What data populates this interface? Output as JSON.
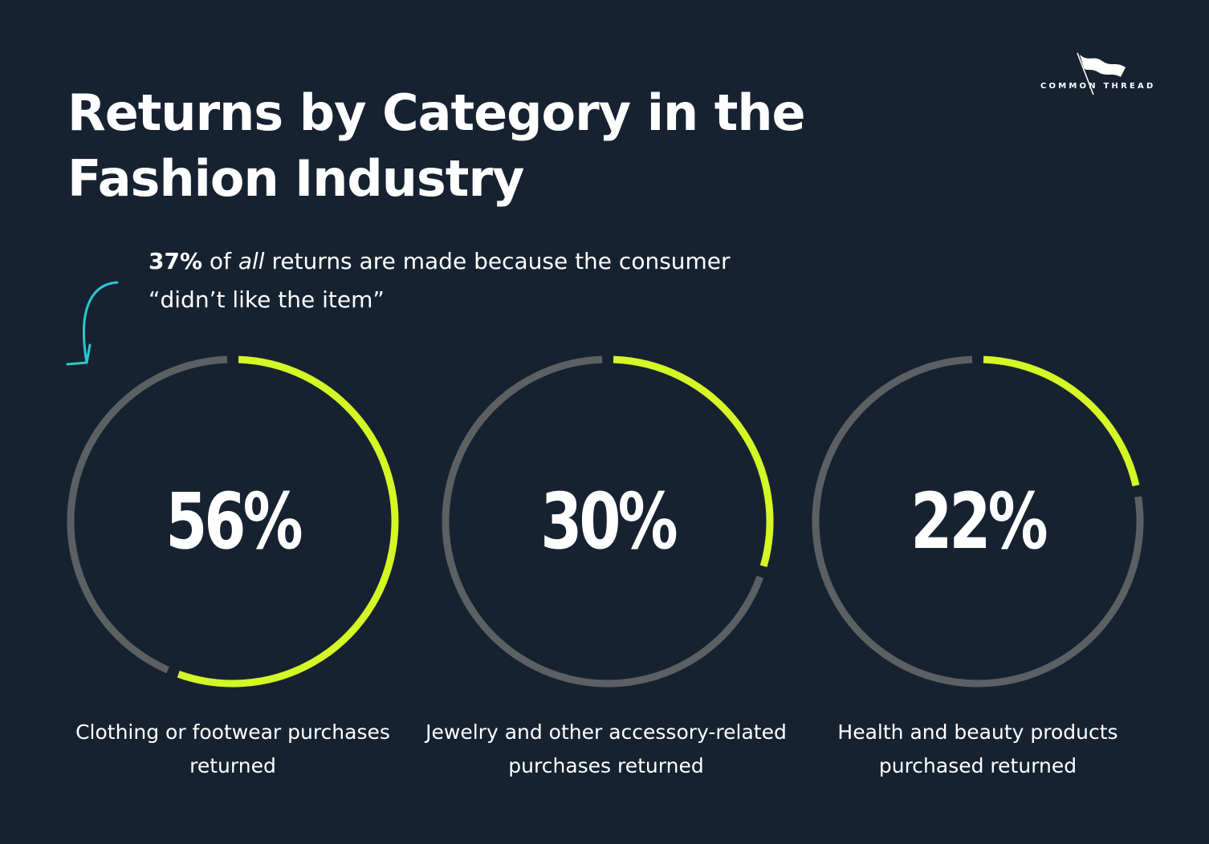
{
  "title": "Returns by Category in the Fashion Industry",
  "brand": "COMMON THREAD",
  "callout": {
    "bold": "37%",
    "pre": " of ",
    "italic": "all",
    "post": " returns are made because the consumer “didn’t like the item”"
  },
  "colors": {
    "background": "#172231",
    "accent": "#D4F725",
    "track": "#5C6063",
    "arrow": "#2BC8D0",
    "text": "#FFFFFF"
  },
  "chart_data": {
    "type": "donut",
    "unit": "%",
    "items": [
      {
        "value": 56,
        "label": "56%",
        "caption": "Clothing or footwear purchases returned"
      },
      {
        "value": 30,
        "label": "30%",
        "caption": "Jewelry and other accessory-related purchases returned"
      },
      {
        "value": 22,
        "label": "22%",
        "caption": "Health and beauty products purchased returned"
      }
    ]
  }
}
